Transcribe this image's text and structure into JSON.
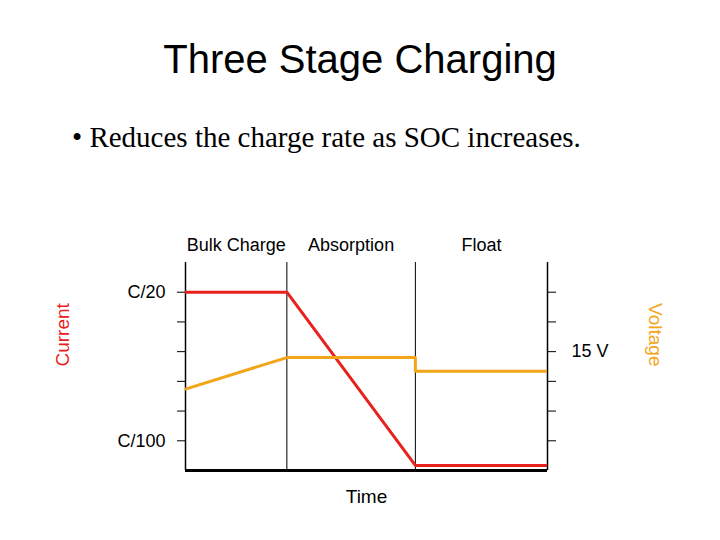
{
  "chart_data": {
    "type": "line",
    "title": "Three Stage Charging",
    "subtitle": "• Reduces the charge rate as SOC increases.",
    "xlabel": "Time",
    "ylabel": "Current",
    "y2label": "Voltage",
    "tick_labels": "y",
    "xlim": [
      0,
      100
    ],
    "ylim": [
      0,
      7
    ],
    "yticks": [
      {
        "value": 1,
        "label": "C/100"
      },
      {
        "value": 2,
        "label": null
      },
      {
        "value": 3,
        "label": null
      },
      {
        "value": 4,
        "label": null
      },
      {
        "value": 5,
        "label": null
      },
      {
        "value": 6,
        "label": "C/20"
      }
    ],
    "y2lim": [
      13,
      16.5
    ],
    "y2ticks": [
      {
        "value": 13.5,
        "label": null
      },
      {
        "value": 14,
        "label": null
      },
      {
        "value": 14.5,
        "label": null
      },
      {
        "value": 15,
        "label": "15 V"
      },
      {
        "value": 15.5,
        "label": null
      },
      {
        "value": 16,
        "label": null
      }
    ],
    "phases": [
      {
        "name": "Bulk Charge",
        "start": 0,
        "end": 28
      },
      {
        "name": "Absorption",
        "start": 28,
        "end": 63.5
      },
      {
        "name": "Float",
        "start": 63.5,
        "end": 100
      }
    ],
    "series": [
      {
        "name": "Current",
        "color": "#e8211c",
        "axis": "y",
        "x": [
          0,
          28,
          63.5,
          100
        ],
        "values": [
          6,
          6,
          0.17,
          0.17
        ]
      },
      {
        "name": "Voltage",
        "color": "#f2a516",
        "axis": "y2",
        "x": [
          0,
          28,
          63.5,
          63.5,
          100
        ],
        "values": [
          14.37,
          14.9,
          14.9,
          14.67,
          14.67
        ]
      }
    ]
  }
}
